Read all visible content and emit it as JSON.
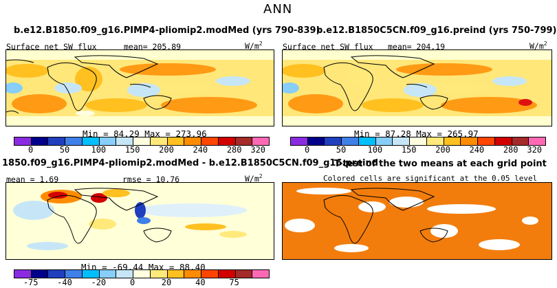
{
  "main_title": "ANN",
  "panel1": {
    "run_title": "b.e12.B1850.f09_g16.PIMP4-pliomip2.modMed (yrs 790-839)",
    "variable": "Surface net SW flux",
    "mean": "mean= 205.89",
    "units": "W/m",
    "units_exp": "2",
    "minmax": "Min =  84.29 Max = 273.96"
  },
  "panel2": {
    "run_title": "b.e12.B1850C5CN.f09_g16.preind (yrs 750-799)",
    "variable": "Surface net SW flux",
    "mean": "mean= 204.19",
    "units": "W/m",
    "units_exp": "2",
    "minmax": "Min =  87.28 Max = 265.97"
  },
  "panel3": {
    "run_title": "1850.f09_g16.PIMP4-pliomip2.modMed - b.e12.B1850C5CN.f09_g16.preind",
    "mean": "mean =   1.69",
    "rmse": "rmse =  10.76",
    "units": "W/m",
    "units_exp": "2",
    "minmax": "Min = -69.44 Max =  88.40"
  },
  "panel4": {
    "run_title": "T-test of the two means at each grid point",
    "subtitle": "Colored cells are significant at the 0.05 level",
    "sig_color": "#f27d0c"
  },
  "colorbar_abs": {
    "colors": [
      "#8a2be2",
      "#00008b",
      "#1f3fbf",
      "#3f7fe8",
      "#00bfff",
      "#87cefa",
      "#c6e6f8",
      "#ffffe0",
      "#ffe97a",
      "#ffc020",
      "#ff8c00",
      "#ff4500",
      "#d30000",
      "#a52a2a",
      "#ff69b4"
    ],
    "ticks": [
      "0",
      "50",
      "100",
      "150",
      "200",
      "240",
      "280",
      "320"
    ]
  },
  "colorbar_diff": {
    "colors": [
      "#8a2be2",
      "#00008b",
      "#1f3fbf",
      "#3f7fe8",
      "#00bfff",
      "#87cefa",
      "#c6e6f8",
      "#ffffe0",
      "#ffe97a",
      "#ffc020",
      "#ff8c00",
      "#ff4500",
      "#d30000",
      "#a52a2a",
      "#ff69b4"
    ],
    "ticks": [
      "-75",
      "-40",
      "-20",
      "0",
      "20",
      "40",
      "75"
    ]
  }
}
